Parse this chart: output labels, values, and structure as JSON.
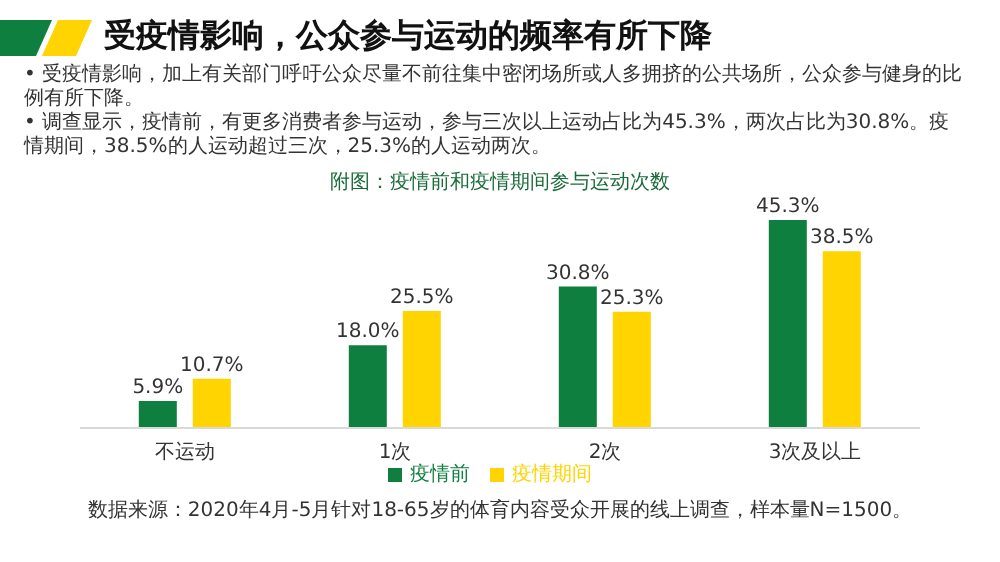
{
  "chart_data": {
    "type": "bar",
    "title": "受疫情影响，公众参与运动的频率有所下降",
    "subtitle": "附图：疫情前和疫情期间参与运动次数",
    "annotations": [
      "• 受疫情影响，加上有关部门呼吁公众尽量不前往集中密闭场所或人多拥挤的公共场所，公众参与健身的比例有所下降。",
      "• 调查显示，疫情前，有更多消费者参与运动，参与三次以上运动占比为45.3%，两次占比为30.8%。疫情期间，38.5%的人运动超过三次，25.3%的人运动两次。",
      "数据来源：2020年4月-5月针对18-65岁的体育内容受众开展的线上调查，样本量N=1500。"
    ],
    "categories": [
      "不运动",
      "1次",
      "2次",
      "3次及以上"
    ],
    "series": [
      {
        "name": "疫情前",
        "color": "#0f7f3f",
        "values": [
          5.9,
          18.0,
          30.8,
          45.3
        ],
        "value_labels": [
          "5.9%",
          "18.0%",
          "30.8%",
          "45.3%"
        ]
      },
      {
        "name": "疫情期间",
        "color": "#ffd400",
        "values": [
          10.7,
          25.5,
          25.3,
          38.5
        ],
        "value_labels": [
          "10.7%",
          "25.5%",
          "25.3%",
          "38.5%"
        ]
      }
    ],
    "legend": "bottom"
  }
}
